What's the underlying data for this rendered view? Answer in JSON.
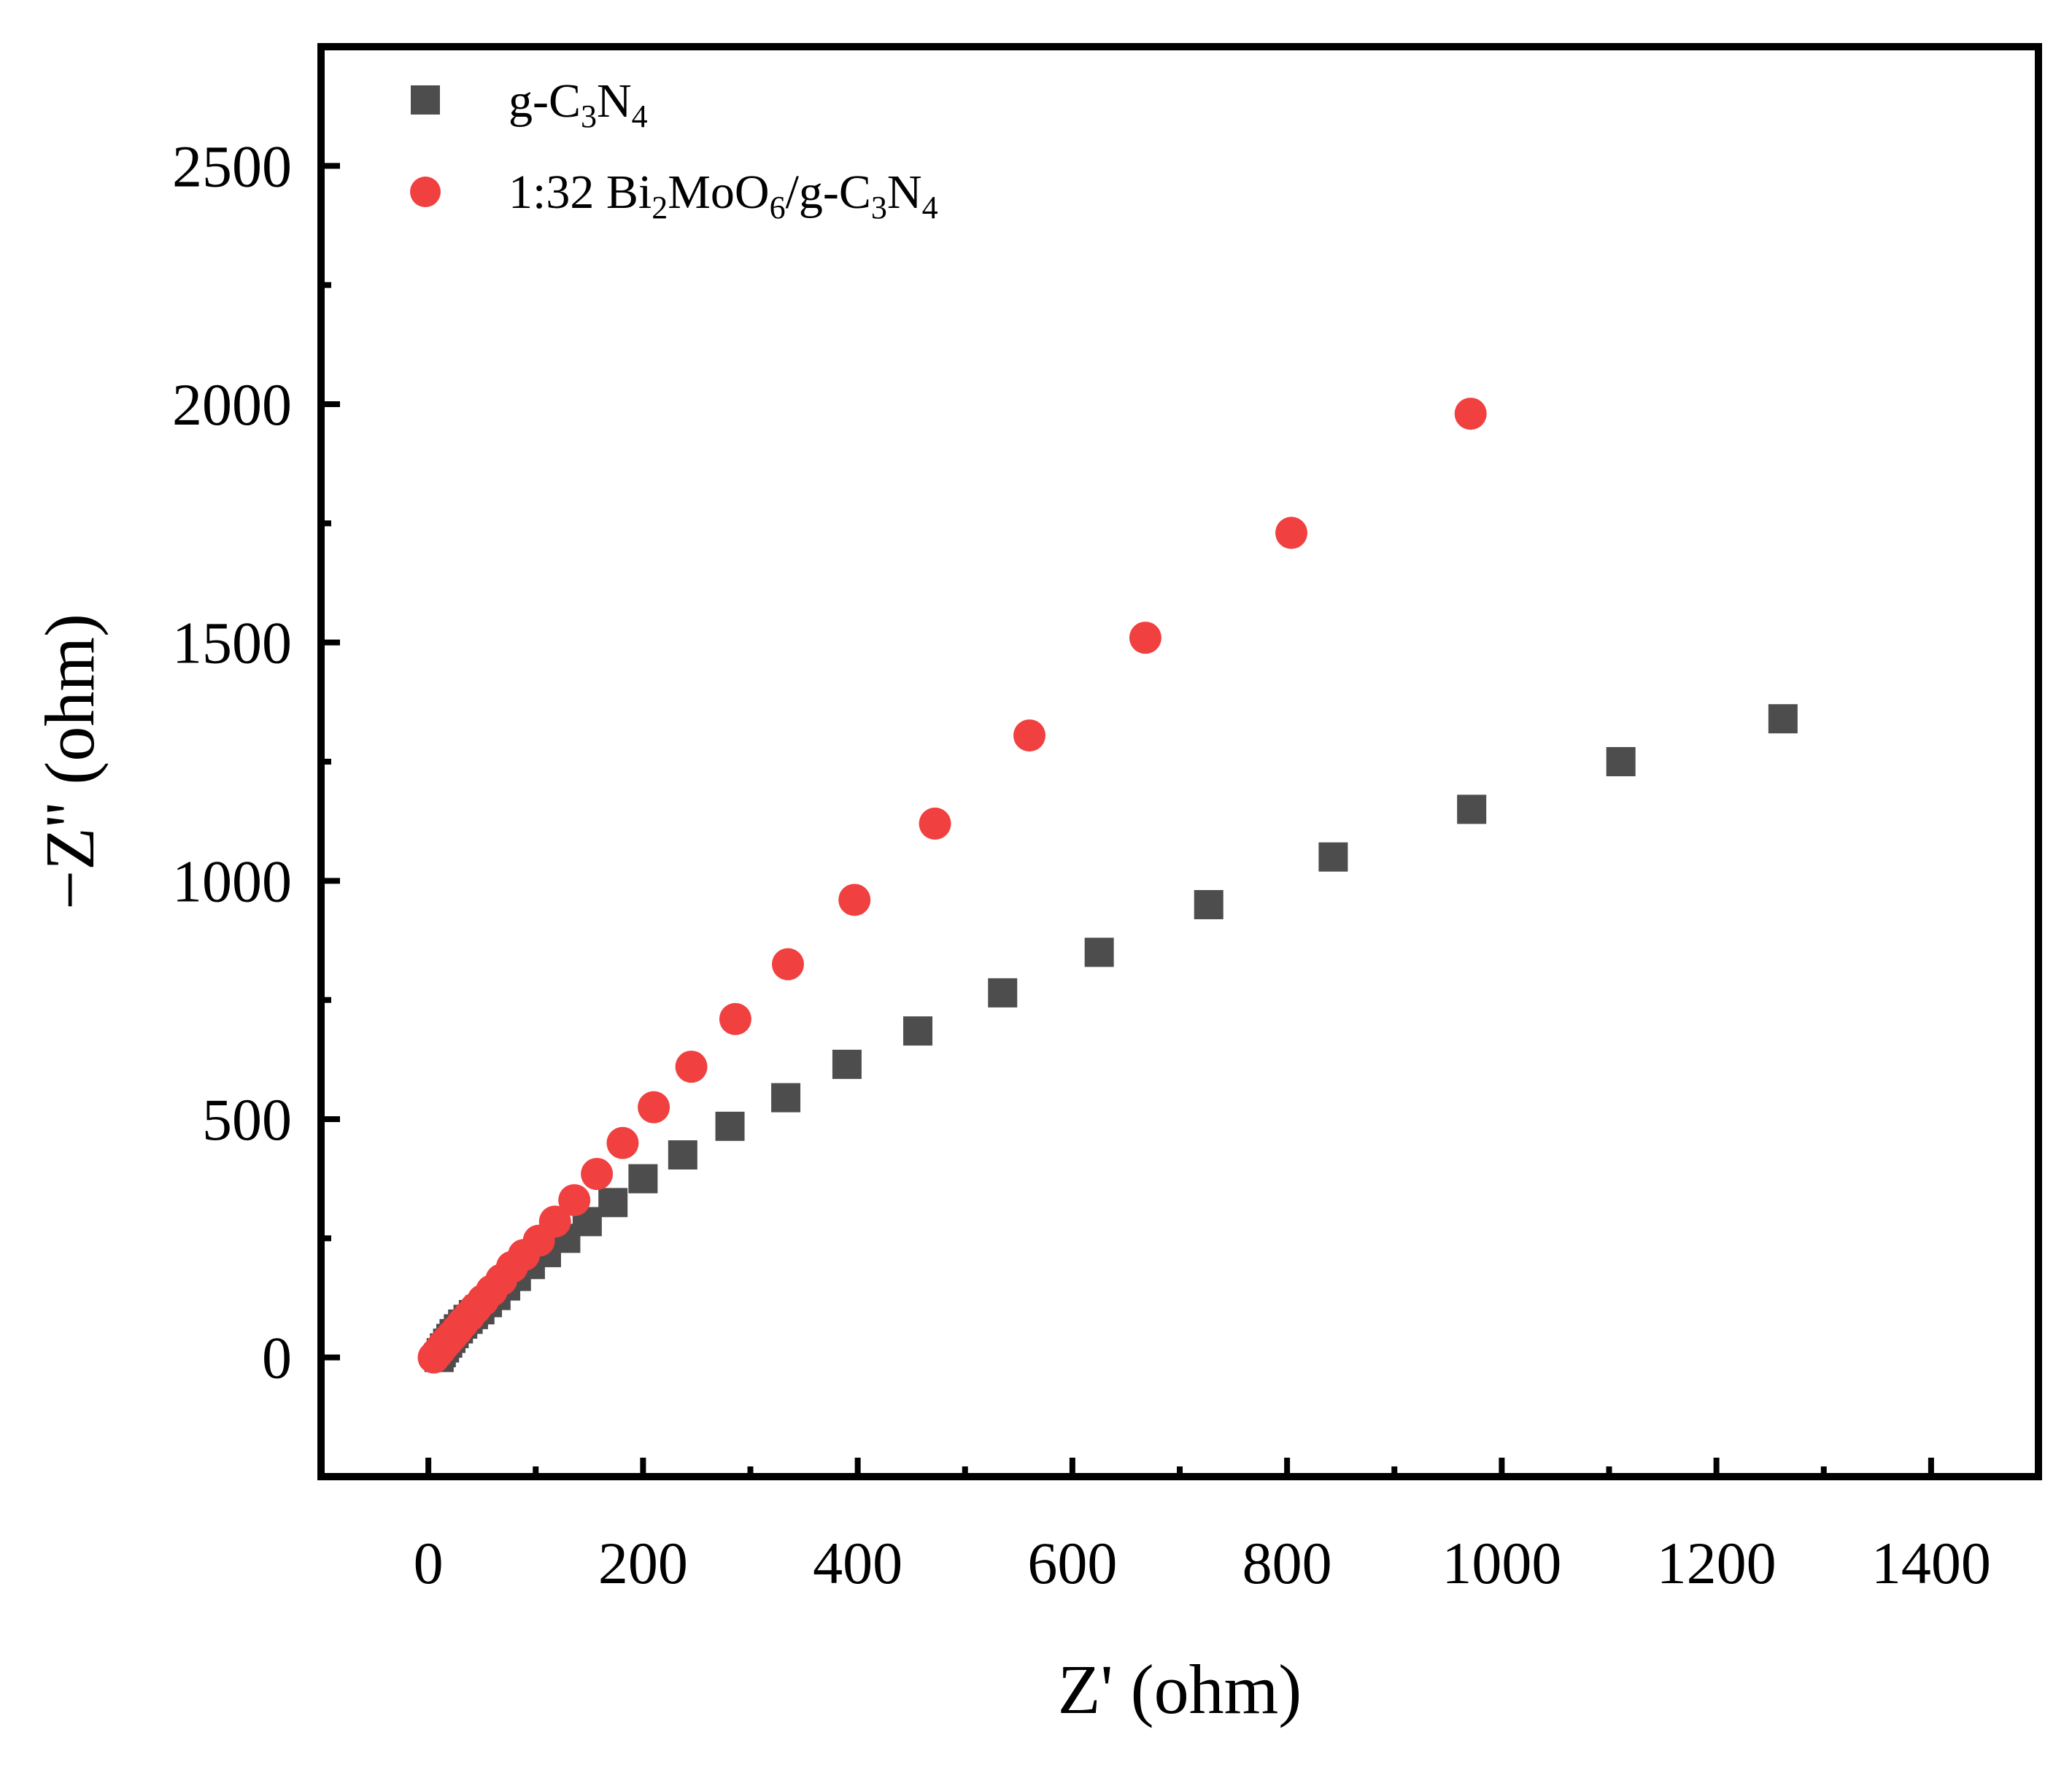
{
  "chart_data": {
    "type": "scatter",
    "title": "",
    "xlabel": "Z' (ohm)",
    "ylabel": "−Z'' (ohm)",
    "xlim": [
      -100,
      1500
    ],
    "ylim": [
      -250,
      2750
    ],
    "xticks": [
      0,
      200,
      400,
      600,
      800,
      1000,
      1200,
      1400
    ],
    "yticks": [
      0,
      500,
      1000,
      1500,
      2000,
      2500
    ],
    "xtick_labels": [
      "0",
      "200",
      "400",
      "600",
      "800",
      "1000",
      "1200",
      "1400"
    ],
    "ytick_labels": [
      "0",
      "500",
      "1000",
      "1500",
      "2000",
      "2500"
    ],
    "grid": false,
    "legend_position": "top-left",
    "series": [
      {
        "name": "g-C3N4",
        "legend_label": {
          "pre": "g-C",
          "sub1": "3",
          "mid": "N",
          "sub2": "4"
        },
        "marker": "square",
        "color": "#4d4d4d",
        "x": [
          10,
          12,
          15,
          18,
          21,
          24,
          28,
          32,
          37,
          42,
          48,
          55,
          63,
          72,
          82,
          95,
          110,
          128,
          148,
          172,
          200,
          237,
          281,
          333,
          390,
          456,
          535,
          625,
          727,
          843,
          972,
          1111,
          1262
        ],
        "y": [
          0,
          10,
          20,
          30,
          40,
          50,
          60,
          70,
          80,
          90,
          100,
          115,
          130,
          150,
          170,
          195,
          220,
          250,
          285,
          325,
          375,
          425,
          485,
          545,
          615,
          685,
          765,
          850,
          950,
          1050,
          1150,
          1250,
          1340
        ]
      },
      {
        "name": "1:32 Bi2MoO6/g-C3N4",
        "legend_label": {
          "pre": "1:32 Bi",
          "sub1": "2",
          "mid": "MoO",
          "sub2": "6",
          "mid2": "/g-C",
          "sub3": "3",
          "mid3": "N",
          "sub4": "4"
        },
        "marker": "circle",
        "color": "#f04040",
        "x": [
          5,
          8,
          11,
          14,
          18,
          22,
          27,
          32,
          38,
          44,
          51,
          59,
          68,
          78,
          89,
          103,
          118,
          136,
          157,
          181,
          210,
          245,
          286,
          335,
          397,
          472,
          560,
          668,
          804,
          971
        ],
        "y": [
          0,
          8,
          16,
          25,
          35,
          45,
          58,
          72,
          87,
          103,
          120,
          140,
          163,
          190,
          215,
          245,
          285,
          330,
          385,
          450,
          525,
          610,
          710,
          825,
          960,
          1120,
          1305,
          1510,
          1730,
          1980
        ]
      }
    ]
  }
}
